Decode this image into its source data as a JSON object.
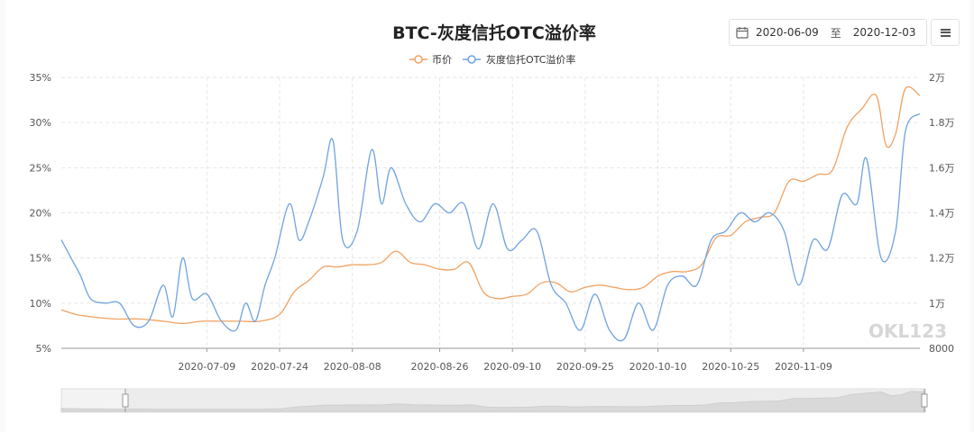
{
  "title": "BTC-灰度信托OTC溢价率",
  "date_range": {
    "start": "2020-06-09",
    "separator": "至",
    "end": "2020-12-03"
  },
  "icons": {
    "date": "calendar-icon",
    "menu": "hamburger-menu-icon"
  },
  "watermark": "OKL123",
  "colors": {
    "price": "#f0a262",
    "premium": "#6fa3df",
    "grid": "#e6e6e6",
    "axis_text": "#555555"
  },
  "chart_data": {
    "type": "line",
    "title": "BTC-灰度信托OTC溢价率",
    "x_tick_labels": [
      "2020-07-09",
      "2020-07-24",
      "2020-08-08",
      "2020-08-26",
      "2020-09-10",
      "2020-09-25",
      "2020-10-10",
      "2020-10-25",
      "2020-11-09"
    ],
    "x_range": [
      "2020-06-09",
      "2020-12-03"
    ],
    "y_left": {
      "ticks": [
        "35%",
        "30%",
        "25%",
        "20%",
        "15%",
        "10%",
        "5%"
      ],
      "range": [
        5,
        35
      ],
      "unit": "%"
    },
    "y_right": {
      "ticks": [
        "2万",
        "1.8万",
        "1.6万",
        "1.4万",
        "1.2万",
        "1万",
        "8000"
      ],
      "range": [
        8000,
        20000
      ]
    },
    "legend": {
      "position": "top-center"
    },
    "grid": true,
    "series": [
      {
        "name": "币价",
        "axis": "right",
        "points": [
          [
            "2020-06-09",
            9700
          ],
          [
            "2020-06-12",
            9500
          ],
          [
            "2020-06-15",
            9400
          ],
          [
            "2020-06-20",
            9300
          ],
          [
            "2020-06-25",
            9300
          ],
          [
            "2020-06-30",
            9200
          ],
          [
            "2020-07-04",
            9100
          ],
          [
            "2020-07-08",
            9200
          ],
          [
            "2020-07-12",
            9200
          ],
          [
            "2020-07-16",
            9200
          ],
          [
            "2020-07-20",
            9200
          ],
          [
            "2020-07-24",
            9500
          ],
          [
            "2020-07-27",
            10500
          ],
          [
            "2020-07-30",
            11000
          ],
          [
            "2020-08-02",
            11600
          ],
          [
            "2020-08-05",
            11600
          ],
          [
            "2020-08-08",
            11700
          ],
          [
            "2020-08-11",
            11700
          ],
          [
            "2020-08-14",
            11800
          ],
          [
            "2020-08-17",
            12300
          ],
          [
            "2020-08-20",
            11800
          ],
          [
            "2020-08-23",
            11700
          ],
          [
            "2020-08-26",
            11500
          ],
          [
            "2020-08-29",
            11500
          ],
          [
            "2020-09-01",
            11800
          ],
          [
            "2020-09-04",
            10500
          ],
          [
            "2020-09-07",
            10200
          ],
          [
            "2020-09-10",
            10300
          ],
          [
            "2020-09-13",
            10400
          ],
          [
            "2020-09-16",
            10900
          ],
          [
            "2020-09-19",
            10900
          ],
          [
            "2020-09-22",
            10500
          ],
          [
            "2020-09-25",
            10700
          ],
          [
            "2020-09-28",
            10800
          ],
          [
            "2020-10-01",
            10700
          ],
          [
            "2020-10-04",
            10600
          ],
          [
            "2020-10-07",
            10700
          ],
          [
            "2020-10-10",
            11200
          ],
          [
            "2020-10-13",
            11400
          ],
          [
            "2020-10-16",
            11400
          ],
          [
            "2020-10-19",
            11700
          ],
          [
            "2020-10-22",
            12900
          ],
          [
            "2020-10-25",
            13000
          ],
          [
            "2020-10-28",
            13600
          ],
          [
            "2020-10-31",
            13800
          ],
          [
            "2020-11-03",
            14000
          ],
          [
            "2020-11-06",
            15400
          ],
          [
            "2020-11-09",
            15400
          ],
          [
            "2020-11-12",
            15700
          ],
          [
            "2020-11-15",
            15900
          ],
          [
            "2020-11-18",
            17800
          ],
          [
            "2020-11-21",
            18600
          ],
          [
            "2020-11-24",
            19200
          ],
          [
            "2020-11-26",
            17000
          ],
          [
            "2020-11-28",
            17500
          ],
          [
            "2020-11-30",
            19500
          ],
          [
            "2020-12-03",
            19200
          ]
        ]
      },
      {
        "name": "灰度信托OTC溢价率",
        "axis": "left",
        "points": [
          [
            "2020-06-09",
            17
          ],
          [
            "2020-06-11",
            15
          ],
          [
            "2020-06-13",
            13
          ],
          [
            "2020-06-15",
            10.5
          ],
          [
            "2020-06-18",
            10
          ],
          [
            "2020-06-21",
            10
          ],
          [
            "2020-06-24",
            7.5
          ],
          [
            "2020-06-27",
            8
          ],
          [
            "2020-06-30",
            12
          ],
          [
            "2020-07-02",
            8.5
          ],
          [
            "2020-07-04",
            15
          ],
          [
            "2020-07-06",
            10.5
          ],
          [
            "2020-07-09",
            11
          ],
          [
            "2020-07-12",
            8
          ],
          [
            "2020-07-15",
            7
          ],
          [
            "2020-07-17",
            10
          ],
          [
            "2020-07-19",
            8
          ],
          [
            "2020-07-21",
            12
          ],
          [
            "2020-07-23",
            15
          ],
          [
            "2020-07-26",
            21
          ],
          [
            "2020-07-28",
            17
          ],
          [
            "2020-07-30",
            19
          ],
          [
            "2020-08-02",
            24
          ],
          [
            "2020-08-04",
            28
          ],
          [
            "2020-08-06",
            17
          ],
          [
            "2020-08-09",
            18
          ],
          [
            "2020-08-12",
            27
          ],
          [
            "2020-08-14",
            21
          ],
          [
            "2020-08-16",
            25
          ],
          [
            "2020-08-19",
            21
          ],
          [
            "2020-08-22",
            19
          ],
          [
            "2020-08-25",
            21
          ],
          [
            "2020-08-28",
            20
          ],
          [
            "2020-08-31",
            21
          ],
          [
            "2020-09-03",
            16
          ],
          [
            "2020-09-06",
            21
          ],
          [
            "2020-09-09",
            16
          ],
          [
            "2020-09-12",
            17
          ],
          [
            "2020-09-15",
            18
          ],
          [
            "2020-09-18",
            12
          ],
          [
            "2020-09-21",
            10
          ],
          [
            "2020-09-24",
            7
          ],
          [
            "2020-09-27",
            11
          ],
          [
            "2020-09-30",
            7
          ],
          [
            "2020-10-03",
            6
          ],
          [
            "2020-10-06",
            10
          ],
          [
            "2020-10-09",
            7
          ],
          [
            "2020-10-12",
            12
          ],
          [
            "2020-10-15",
            13
          ],
          [
            "2020-10-18",
            12
          ],
          [
            "2020-10-21",
            17
          ],
          [
            "2020-10-24",
            18
          ],
          [
            "2020-10-27",
            20
          ],
          [
            "2020-10-30",
            19
          ],
          [
            "2020-11-02",
            20
          ],
          [
            "2020-11-05",
            18
          ],
          [
            "2020-11-08",
            12
          ],
          [
            "2020-11-11",
            17
          ],
          [
            "2020-11-14",
            16
          ],
          [
            "2020-11-17",
            22
          ],
          [
            "2020-11-20",
            21
          ],
          [
            "2020-11-22",
            26
          ],
          [
            "2020-11-25",
            15
          ],
          [
            "2020-11-28",
            18
          ],
          [
            "2020-11-30",
            29
          ],
          [
            "2020-12-03",
            31
          ]
        ]
      }
    ]
  }
}
